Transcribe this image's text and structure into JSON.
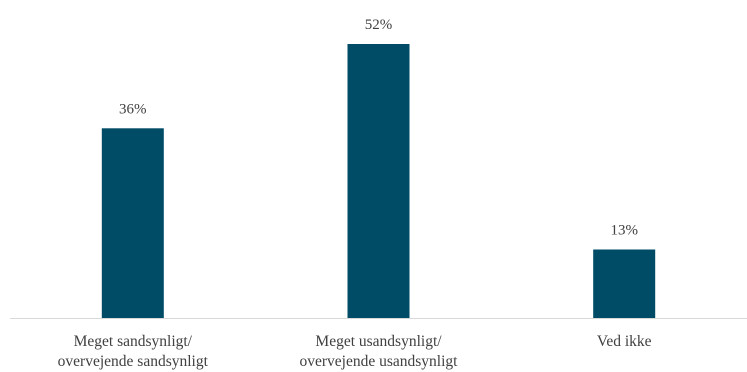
{
  "chart_data": {
    "type": "bar",
    "categories": [
      [
        "Meget sandsynligt/",
        "overvejende sandsynligt"
      ],
      [
        "Meget usandsynligt/",
        "overvejende usandsynligt"
      ],
      [
        "Ved ikke"
      ]
    ],
    "values": [
      36,
      52,
      13
    ],
    "value_labels": [
      "36%",
      "52%",
      "13%"
    ],
    "title": "",
    "xlabel": "",
    "ylabel": "",
    "ylim": [
      0,
      60
    ],
    "grid": false,
    "legend": "none",
    "colors": {
      "bar": "#004b66",
      "axis": "#d9d9d9",
      "text": "#404040"
    }
  }
}
